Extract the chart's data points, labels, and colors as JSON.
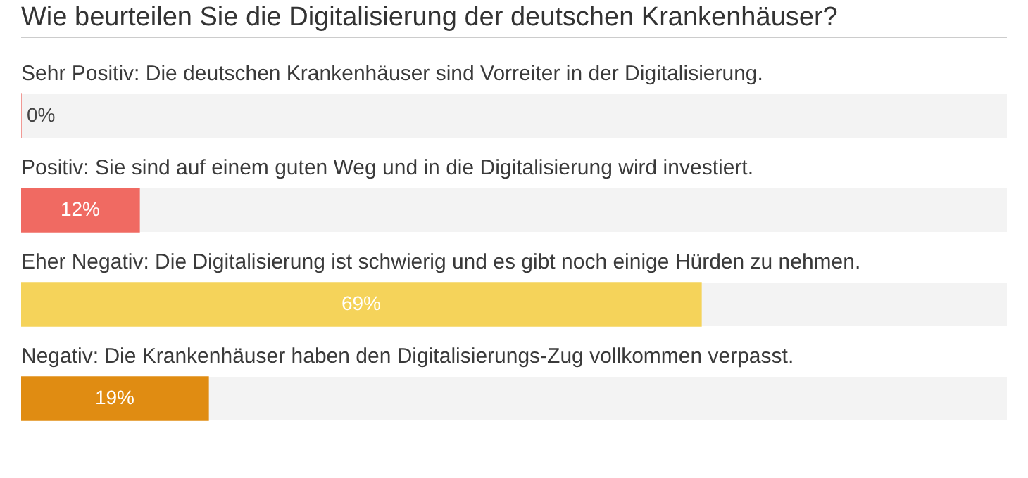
{
  "chart_data": {
    "type": "bar",
    "orientation": "horizontal",
    "title": "Wie beurteilen Sie die Digitalisierung der deutschen Krankenhäuser?",
    "categories": [
      "Sehr Positiv: Die deutschen Krankenhäuser sind Vorreiter in der Digitalisierung.",
      "Positiv: Sie sind auf einem guten Weg und in die Digitalisierung wird investiert.",
      "Eher Negativ: Die Digitalisierung ist schwierig und es gibt noch einige Hürden zu nehmen.",
      "Negativ: Die Krankenhäuser haben den Digitalisierungs-Zug vollkommen verpasst."
    ],
    "values": [
      0,
      12,
      69,
      19
    ],
    "colors": [
      "#f06a62",
      "#f06a62",
      "#f5d35a",
      "#e08c12"
    ],
    "value_labels": [
      "0%",
      "12%",
      "69%",
      "19%"
    ],
    "xlim": [
      0,
      100
    ],
    "tick_labels": "y",
    "legend": false
  }
}
